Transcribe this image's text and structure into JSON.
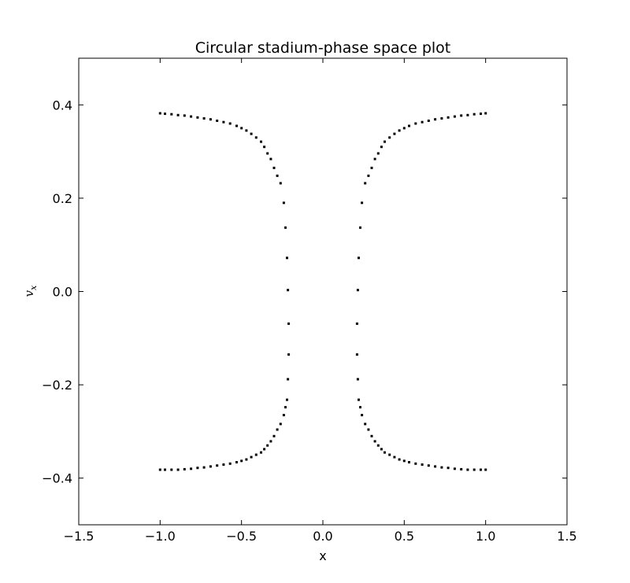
{
  "chart_data": {
    "type": "scatter",
    "title": "Circular stadium-phase space plot",
    "xlabel": "x",
    "ylabel": "v",
    "ylabel_subscript": "x",
    "xlim": [
      -1.5,
      1.5
    ],
    "ylim": [
      -0.5,
      0.5
    ],
    "xticks": [
      -1.5,
      -1.0,
      -0.5,
      0.0,
      0.5,
      1.0,
      1.5
    ],
    "xtick_labels": [
      "−1.5",
      "−1.0",
      "−0.5",
      "0.0",
      "0.5",
      "1.0",
      "1.5"
    ],
    "yticks": [
      -0.4,
      -0.2,
      0.0,
      0.2,
      0.4
    ],
    "ytick_labels": [
      "−0.4",
      "−0.2",
      "0.0",
      "0.2",
      "0.4"
    ],
    "grid": false,
    "marker_color": "#000000",
    "series": [
      {
        "x": [
          -1.0,
          -0.97,
          -0.93,
          -0.89,
          -0.85,
          -0.81,
          -0.77,
          -0.73,
          -0.69,
          -0.65,
          -0.61,
          -0.57,
          -0.53,
          -0.5,
          -0.47,
          -0.44,
          -0.41,
          -0.38,
          -0.36,
          -0.34,
          -0.32,
          -0.3,
          -0.28,
          -0.26,
          -0.24,
          -0.23,
          -0.22,
          -0.215,
          -0.21,
          -0.21,
          -0.215,
          -0.22,
          -0.23,
          -0.24,
          -0.26,
          -0.28,
          -0.3,
          -0.32,
          -0.34,
          -0.36,
          -0.38,
          -0.41,
          -0.44,
          -0.47,
          -0.5,
          -0.53,
          -0.57,
          -0.61,
          -0.65,
          -0.69,
          -0.73,
          -0.77,
          -0.81,
          -0.85,
          -0.89,
          -0.93,
          -0.97,
          -1.0
        ],
        "y": [
          0.382,
          0.381,
          0.38,
          0.378,
          0.377,
          0.375,
          0.373,
          0.371,
          0.369,
          0.366,
          0.363,
          0.36,
          0.355,
          0.35,
          0.345,
          0.338,
          0.33,
          0.321,
          0.31,
          0.296,
          0.284,
          0.265,
          0.248,
          0.232,
          0.19,
          0.137,
          0.072,
          0.003,
          -0.069,
          -0.135,
          -0.188,
          -0.232,
          -0.248,
          -0.265,
          -0.284,
          -0.296,
          -0.31,
          -0.321,
          -0.33,
          -0.338,
          -0.345,
          -0.35,
          -0.355,
          -0.36,
          -0.363,
          -0.366,
          -0.369,
          -0.371,
          -0.373,
          -0.375,
          -0.377,
          -0.378,
          -0.38,
          -0.381,
          -0.382,
          -0.382,
          -0.382,
          -0.382
        ]
      },
      {
        "x": [
          1.0,
          0.97,
          0.93,
          0.89,
          0.85,
          0.81,
          0.77,
          0.73,
          0.69,
          0.65,
          0.61,
          0.57,
          0.53,
          0.5,
          0.47,
          0.44,
          0.41,
          0.38,
          0.36,
          0.34,
          0.32,
          0.3,
          0.28,
          0.26,
          0.24,
          0.23,
          0.22,
          0.215,
          0.21,
          0.21,
          0.215,
          0.22,
          0.23,
          0.24,
          0.26,
          0.28,
          0.3,
          0.32,
          0.34,
          0.36,
          0.38,
          0.41,
          0.44,
          0.47,
          0.5,
          0.53,
          0.57,
          0.61,
          0.65,
          0.69,
          0.73,
          0.77,
          0.81,
          0.85,
          0.89,
          0.93,
          0.97,
          1.0
        ],
        "y": [
          0.382,
          0.381,
          0.38,
          0.378,
          0.377,
          0.375,
          0.373,
          0.371,
          0.369,
          0.366,
          0.363,
          0.36,
          0.355,
          0.35,
          0.345,
          0.338,
          0.33,
          0.321,
          0.31,
          0.296,
          0.284,
          0.265,
          0.248,
          0.232,
          0.19,
          0.137,
          0.072,
          0.003,
          -0.069,
          -0.135,
          -0.188,
          -0.232,
          -0.248,
          -0.265,
          -0.284,
          -0.296,
          -0.31,
          -0.321,
          -0.33,
          -0.338,
          -0.345,
          -0.35,
          -0.355,
          -0.36,
          -0.363,
          -0.366,
          -0.369,
          -0.371,
          -0.373,
          -0.375,
          -0.377,
          -0.378,
          -0.38,
          -0.381,
          -0.382,
          -0.382,
          -0.382,
          -0.382
        ]
      }
    ]
  }
}
